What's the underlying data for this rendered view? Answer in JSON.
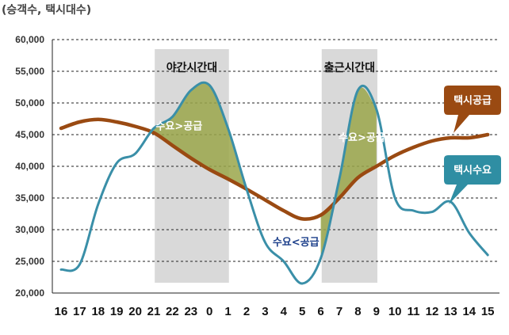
{
  "chart_data": {
    "type": "line",
    "unit_label": "(승객수, 택시대수)",
    "ylim": [
      20000,
      60000
    ],
    "yticks": [
      20000,
      25000,
      30000,
      35000,
      40000,
      45000,
      50000,
      55000,
      60000
    ],
    "ytick_labels": [
      "20,000",
      "25,000",
      "30,000",
      "35,000",
      "40,000",
      "45,000",
      "50,000",
      "55,000",
      "60,000"
    ],
    "categories": [
      "16",
      "17",
      "18",
      "19",
      "20",
      "21",
      "22",
      "23",
      "0",
      "1",
      "2",
      "3",
      "4",
      "5",
      "6",
      "7",
      "8",
      "9",
      "10",
      "11",
      "12",
      "13",
      "14",
      "15"
    ],
    "series": [
      {
        "name": "택시공급",
        "color": "#9a4a12",
        "values": [
          46000,
          47000,
          47400,
          47000,
          46300,
          45300,
          43300,
          41300,
          39500,
          38000,
          36400,
          34700,
          33000,
          31700,
          32300,
          35000,
          38200,
          40000,
          41700,
          43000,
          44000,
          44500,
          44500,
          45000
        ]
      },
      {
        "name": "택시수요",
        "color": "#3a8fa8",
        "values": [
          23700,
          24500,
          34000,
          40500,
          42000,
          46000,
          47800,
          52000,
          52800,
          46000,
          36400,
          28000,
          25000,
          21500,
          25500,
          38000,
          52000,
          49000,
          35000,
          33000,
          32800,
          34400,
          29500,
          26000
        ]
      }
    ],
    "bands": [
      {
        "label": "야간시간대",
        "from": "22",
        "to": "1"
      },
      {
        "label": "출근시간대",
        "from": "7",
        "to": "9"
      }
    ],
    "annotations": [
      {
        "text": "수요>공급",
        "at": "23"
      },
      {
        "text": "수요<공급",
        "at": "5"
      },
      {
        "text": "수요>공급",
        "at": "8"
      }
    ],
    "legend": {
      "supply": "택시공급",
      "demand": "택시수요"
    }
  }
}
